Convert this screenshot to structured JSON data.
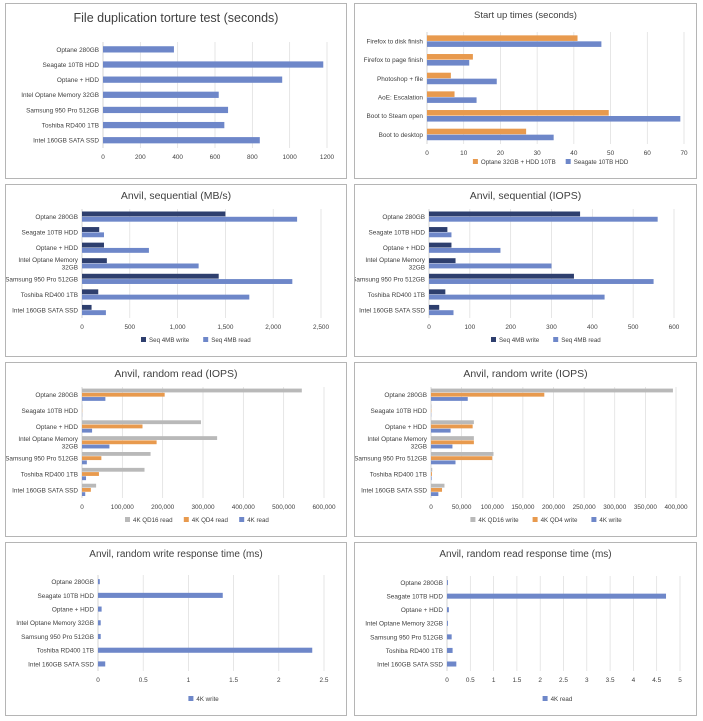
{
  "charts": [
    {
      "type": "bar",
      "orientation": "horizontal",
      "title": "File duplication torture test (seconds)",
      "categories": [
        "Optane 280GB",
        "Seagate 10TB HDD",
        "Optane + HDD",
        "Intel Optane Memory 32GB",
        "Samsung 950 Pro 512GB",
        "Toshiba RD400 1TB",
        "Intel 160GB SATA SSD"
      ],
      "series": [
        {
          "values": [
            380,
            1180,
            960,
            620,
            670,
            650,
            840
          ],
          "color": "#6e87c9"
        }
      ],
      "xlim": [
        0,
        1200
      ],
      "ticks": [
        0,
        200,
        400,
        600,
        800,
        1000,
        1200
      ],
      "tick_labels": [
        "0",
        "200",
        "400",
        "600",
        "800",
        "1000",
        "1200"
      ],
      "legend": "none",
      "grid": true
    },
    {
      "type": "bar",
      "orientation": "horizontal",
      "title": "Start up times (seconds)",
      "categories": [
        "Firefox to disk finish",
        "Firefox to page finish",
        "Photoshop + file",
        "AoE: Escalation",
        "Boot to Steam open",
        "Boot to desktop"
      ],
      "series": [
        {
          "name": "Optane 32GB + HDD 10TB",
          "values": [
            41,
            12.5,
            6.5,
            7.5,
            49.5,
            27
          ],
          "color": "#e89a4e"
        },
        {
          "name": "Seagate 10TB HDD",
          "values": [
            47.5,
            11.5,
            19,
            13.5,
            69,
            34.5
          ],
          "color": "#6e87c9"
        }
      ],
      "xlim": [
        0,
        70
      ],
      "ticks": [
        0,
        10,
        20,
        30,
        40,
        50,
        60,
        70
      ],
      "tick_labels": [
        "0",
        "10",
        "20",
        "30",
        "40",
        "50",
        "60",
        "70"
      ],
      "legend": "bottom",
      "grid": true
    },
    {
      "type": "bar",
      "orientation": "horizontal",
      "title": "Anvil, sequential (MB/s)",
      "categories": [
        "Optane 280GB",
        "Seagate 10TB HDD",
        "Optane + HDD",
        "Intel Optane Memory 32GB",
        "Samsung 950 Pro 512GB",
        "Toshiba RD400 1TB",
        "Intel 160GB SATA SSD"
      ],
      "series": [
        {
          "name": "Seq 4MB write",
          "values": [
            1500,
            180,
            230,
            260,
            1430,
            170,
            100
          ],
          "color": "#2e3f6e"
        },
        {
          "name": "Seq 4MB read",
          "values": [
            2250,
            230,
            700,
            1220,
            2200,
            1750,
            250
          ],
          "color": "#6e87c9"
        }
      ],
      "xlim": [
        0,
        2500
      ],
      "ticks": [
        0,
        500,
        1000,
        1500,
        2000,
        2500
      ],
      "tick_labels": [
        "0",
        "500",
        "1,000",
        "1,500",
        "2,000",
        "2,500"
      ],
      "legend": "bottom",
      "grid": true
    },
    {
      "type": "bar",
      "orientation": "horizontal",
      "title": "Anvil, sequential (IOPS)",
      "categories": [
        "Optane 280GB",
        "Seagate 10TB HDD",
        "Optane + HDD",
        "Intel Optane Memory 32GB",
        "Samsung 950 Pro 512GB",
        "Toshiba RD400 1TB",
        "Intel 160GB SATA SSD"
      ],
      "series": [
        {
          "name": "Seq 4MB write",
          "values": [
            370,
            45,
            55,
            65,
            355,
            40,
            25
          ],
          "color": "#2e3f6e"
        },
        {
          "name": "Seq 4MB read",
          "values": [
            560,
            55,
            175,
            300,
            550,
            430,
            60
          ],
          "color": "#6e87c9"
        }
      ],
      "xlim": [
        0,
        600
      ],
      "ticks": [
        0,
        100,
        200,
        300,
        400,
        500,
        600
      ],
      "tick_labels": [
        "0",
        "100",
        "200",
        "300",
        "400",
        "500",
        "600"
      ],
      "legend": "bottom",
      "grid": true
    },
    {
      "type": "bar",
      "orientation": "horizontal",
      "title": "Anvil, random read (IOPS)",
      "categories": [
        "Optane 280GB",
        "Seagate 10TB HDD",
        "Optane + HDD",
        "Intel Optane Memory 32GB",
        "Samsung 950 Pro 512GB",
        "Toshiba RD400 1TB",
        "Intel 160GB SATA SSD"
      ],
      "series": [
        {
          "name": "4K QD16 read",
          "values": [
            545000,
            800,
            295000,
            335000,
            170000,
            155000,
            35000
          ],
          "color": "#b9b9b9"
        },
        {
          "name": "4K QD4 read",
          "values": [
            205000,
            500,
            150000,
            185000,
            48000,
            42000,
            22000
          ],
          "color": "#e89a4e"
        },
        {
          "name": "4K read",
          "values": [
            58000,
            300,
            25000,
            68000,
            12000,
            10000,
            8000
          ],
          "color": "#6e87c9"
        }
      ],
      "xlim": [
        0,
        600000
      ],
      "ticks": [
        0,
        100000,
        200000,
        300000,
        400000,
        500000,
        600000
      ],
      "tick_labels": [
        "0",
        "100,000",
        "200,000",
        "300,000",
        "400,000",
        "500,000",
        "600,000"
      ],
      "legend": "bottom",
      "grid": true
    },
    {
      "type": "bar",
      "orientation": "horizontal",
      "title": "Anvil, random write (IOPS)",
      "categories": [
        "Optane 280GB",
        "Seagate 10TB HDD",
        "Optane + HDD",
        "Intel Optane Memory 32GB",
        "Samsung 950 Pro 512GB",
        "Toshiba RD400 1TB",
        "Intel 160GB SATA SSD"
      ],
      "series": [
        {
          "name": "4K QD16 write",
          "values": [
            395000,
            800,
            70000,
            70000,
            102000,
            2000,
            22000
          ],
          "color": "#b9b9b9"
        },
        {
          "name": "4K QD4 write",
          "values": [
            185000,
            500,
            68000,
            70000,
            100000,
            1500,
            18000
          ],
          "color": "#e89a4e"
        },
        {
          "name": "4K write",
          "values": [
            60000,
            300,
            32000,
            35000,
            40000,
            1000,
            12000
          ],
          "color": "#6e87c9"
        }
      ],
      "xlim": [
        0,
        400000
      ],
      "ticks": [
        0,
        50000,
        100000,
        150000,
        200000,
        250000,
        300000,
        350000,
        400000
      ],
      "tick_labels": [
        "0",
        "50,000",
        "100,000",
        "150,000",
        "200,000",
        "250,000",
        "300,000",
        "350,000",
        "400,000"
      ],
      "legend": "bottom",
      "grid": true
    },
    {
      "type": "bar",
      "orientation": "horizontal",
      "title": "Anvil, random write response time (ms)",
      "categories": [
        "Optane 280GB",
        "Seagate 10TB HDD",
        "Optane + HDD",
        "Intel Optane Memory 32GB",
        "Samsung 950 Pro 512GB",
        "Toshiba RD400 1TB",
        "Intel 160GB SATA SSD"
      ],
      "series": [
        {
          "name": "4K write",
          "values": [
            0.02,
            1.38,
            0.04,
            0.03,
            0.03,
            2.37,
            0.08
          ],
          "color": "#6e87c9"
        }
      ],
      "xlim": [
        0,
        2.5
      ],
      "ticks": [
        0,
        0.5,
        1,
        1.5,
        2,
        2.5
      ],
      "tick_labels": [
        "0",
        "0.5",
        "1",
        "1.5",
        "2",
        "2.5"
      ],
      "legend": "bottom",
      "grid": true
    },
    {
      "type": "bar",
      "orientation": "horizontal",
      "title": "Anvil, random read response time (ms)",
      "categories": [
        "Optane 280GB",
        "Seagate 10TB HDD",
        "Optane + HDD",
        "Intel Optane Memory 32GB",
        "Samsung 950 Pro 512GB",
        "Toshiba RD400 1TB",
        "Intel 160GB SATA SSD"
      ],
      "series": [
        {
          "name": "4K read",
          "values": [
            0.02,
            4.7,
            0.04,
            0.02,
            0.1,
            0.12,
            0.2
          ],
          "color": "#6e87c9"
        }
      ],
      "xlim": [
        0,
        5
      ],
      "ticks": [
        0,
        0.5,
        1,
        1.5,
        2,
        2.5,
        3,
        3.5,
        4,
        4.5,
        5
      ],
      "tick_labels": [
        "0",
        "0.5",
        "1",
        "1.5",
        "2",
        "2.5",
        "3",
        "3.5",
        "4",
        "4.5",
        "5"
      ],
      "legend": "bottom",
      "grid": true
    }
  ]
}
